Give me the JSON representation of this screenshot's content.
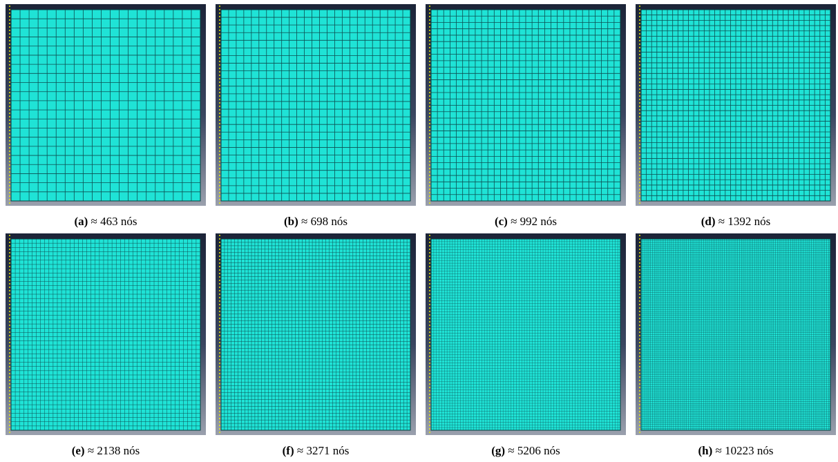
{
  "panels": [
    {
      "label": "(a)",
      "symbol": "≈",
      "nodes": 463,
      "unit": "nós"
    },
    {
      "label": "(b)",
      "symbol": "≈",
      "nodes": 698,
      "unit": "nós"
    },
    {
      "label": "(c)",
      "symbol": "≈",
      "nodes": 992,
      "unit": "nós"
    },
    {
      "label": "(d)",
      "symbol": "≈",
      "nodes": 1392,
      "unit": "nós"
    },
    {
      "label": "(e)",
      "symbol": "≈",
      "nodes": 2138,
      "unit": "nós"
    },
    {
      "label": "(f)",
      "symbol": "≈",
      "nodes": 3271,
      "unit": "nós"
    },
    {
      "label": "(g)",
      "symbol": "≈",
      "nodes": 5206,
      "unit": "nós"
    },
    {
      "label": "(h)",
      "symbol": "≈",
      "nodes": 10223,
      "unit": "nós"
    }
  ]
}
